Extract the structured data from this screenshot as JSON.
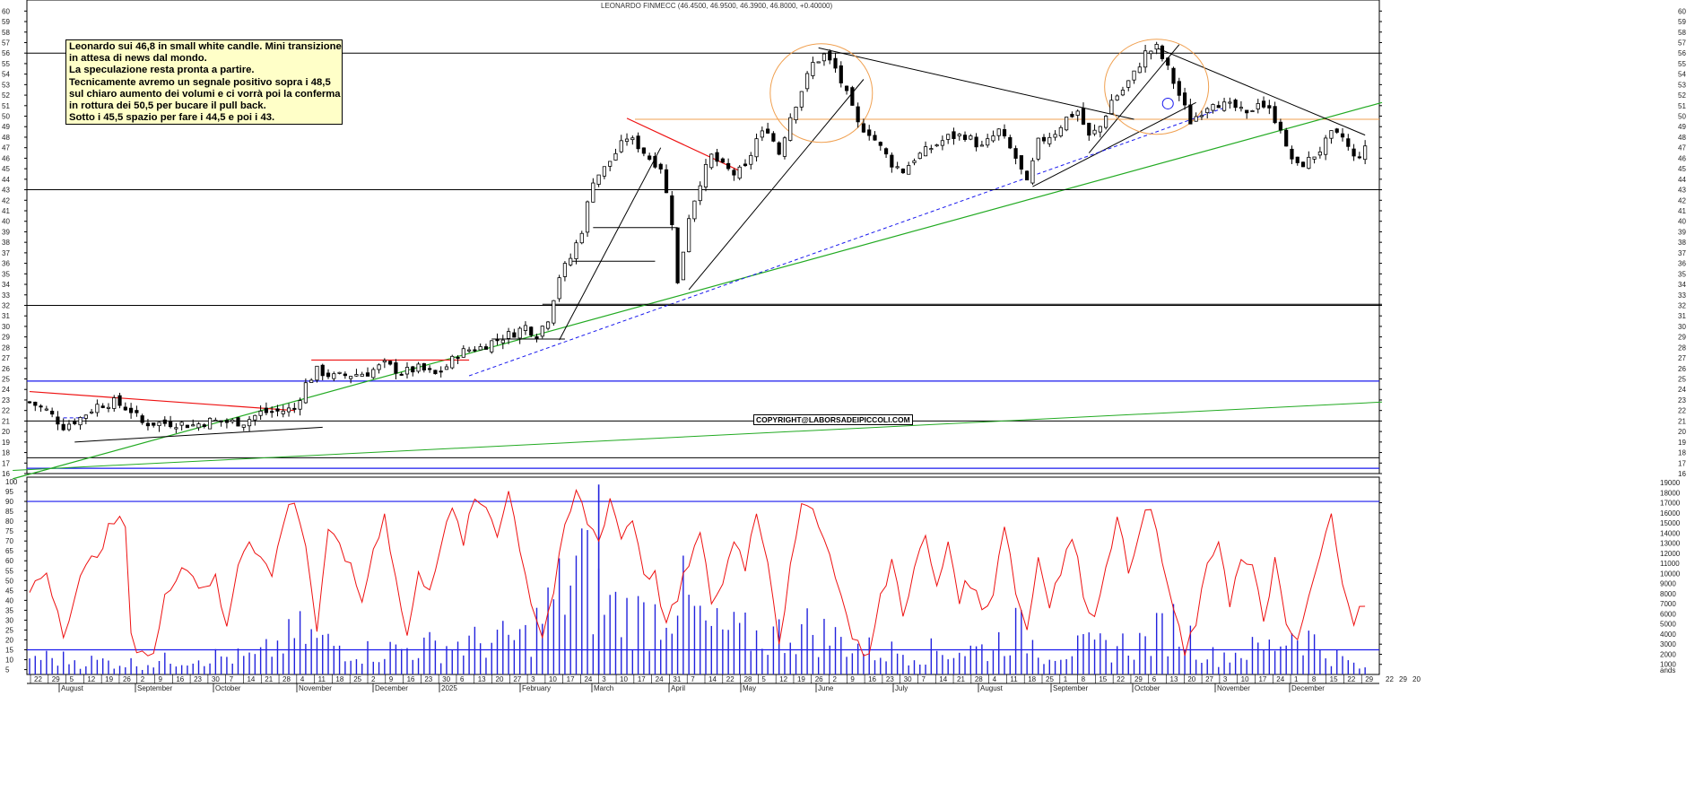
{
  "title": "LEONARDO FINMECC (46.4500, 46.9500, 46.3900, 46.8000, +0.40000)",
  "annotation_lines": [
    "Leonardo sui 46,8 in small white candle. Mini transizione",
    "in attesa di news dal mondo.",
    "La speculazione resta pronta a partire.",
    "Tecnicamente avremo un segnale positivo sopra i 48,5",
    "sul chiaro aumento dei volumi  e ci vorrà poi la conferma",
    "in rottura dei 50,5 per bucare il pull back.",
    "Sotto i 45,5 spazio per fare i 44,5 e poi i 43."
  ],
  "copyright": "COPYRIGHT@LABORSADEIPICCOLI.COM",
  "volume_unit_label": "ands",
  "colors": {
    "price_candles": "#000000",
    "oscillator": "#ee1111",
    "volume": "#2222dd",
    "support_blue": "#1a1aee",
    "trend_green": "#22aa22",
    "trend_red": "#ee1111",
    "circles": "#f0a050",
    "horizontal_orange": "#f0a050"
  },
  "chart_data": {
    "type": "candlestick",
    "price_axis": {
      "min": 16,
      "max": 60,
      "ticks": [
        16,
        17,
        18,
        19,
        20,
        21,
        22,
        23,
        24,
        25,
        26,
        27,
        28,
        29,
        30,
        31,
        32,
        33,
        34,
        35,
        36,
        37,
        38,
        39,
        40,
        41,
        42,
        43,
        44,
        45,
        46,
        47,
        48,
        49,
        50,
        51,
        52,
        53,
        54,
        55,
        56,
        57,
        58,
        59,
        60
      ]
    },
    "oscillator_axis": {
      "min": 5,
      "max": 100,
      "ticks": [
        5,
        10,
        15,
        20,
        25,
        30,
        35,
        40,
        45,
        50,
        55,
        60,
        65,
        70,
        75,
        80,
        85,
        90,
        95,
        100
      ]
    },
    "volume_axis": {
      "min": 0,
      "max": 19000,
      "ticks": [
        1000,
        2000,
        3000,
        4000,
        5000,
        6000,
        7000,
        8000,
        9000,
        10000,
        11000,
        12000,
        13000,
        14000,
        15000,
        16000,
        17000,
        18000,
        19000
      ]
    },
    "day_ticks": [
      "22",
      "29",
      "5",
      "12",
      "19",
      "26",
      "2",
      "9",
      "16",
      "23",
      "30",
      "7",
      "14",
      "21",
      "28",
      "4",
      "11",
      "18",
      "25",
      "2",
      "9",
      "16",
      "23",
      "30",
      "6",
      "13",
      "20",
      "27",
      "3",
      "10",
      "17",
      "24",
      "3",
      "10",
      "17",
      "24",
      "31",
      "7",
      "14",
      "22",
      "28",
      "5",
      "12",
      "19",
      "26",
      "2",
      "9",
      "16",
      "23",
      "30",
      "7",
      "14",
      "21",
      "28",
      "4",
      "11",
      "18",
      "25",
      "1",
      "8",
      "15",
      "22",
      "29",
      "6",
      "13",
      "20",
      "27",
      "3",
      "10",
      "17",
      "24",
      "1",
      "8",
      "15",
      "22",
      "29"
    ],
    "month_labels": [
      "August",
      "September",
      "October",
      "November",
      "December",
      "2025",
      "February",
      "March",
      "April",
      "May",
      "June",
      "July",
      "August",
      "September",
      "October",
      "November",
      "December"
    ],
    "extra_right_ticks": [
      "22",
      "29",
      "20"
    ],
    "horizontal_levels": {
      "black": [
        56,
        43,
        32,
        21,
        17.5
      ],
      "blue": [
        24.8,
        16.5
      ],
      "orange": [
        49.7
      ],
      "oscillator_blue": [
        90,
        15
      ]
    },
    "close_anchors": [
      [
        0,
        22.8
      ],
      [
        3,
        22.0
      ],
      [
        6,
        20.5
      ],
      [
        9,
        21.3
      ],
      [
        12,
        22.5
      ],
      [
        15,
        22.8
      ],
      [
        18,
        22.0
      ],
      [
        20,
        20.8
      ],
      [
        23,
        20.8
      ],
      [
        26,
        20.8
      ],
      [
        29,
        20.6
      ],
      [
        32,
        21.0
      ],
      [
        35,
        20.9
      ],
      [
        38,
        20.9
      ],
      [
        41,
        21.8
      ],
      [
        44,
        21.9
      ],
      [
        47,
        22.2
      ],
      [
        49,
        24.5
      ],
      [
        51,
        25.8
      ],
      [
        54,
        25.2
      ],
      [
        57,
        25.4
      ],
      [
        60,
        25.6
      ],
      [
        63,
        26.4
      ],
      [
        66,
        25.6
      ],
      [
        69,
        26.0
      ],
      [
        72,
        25.4
      ],
      [
        74,
        26.2
      ],
      [
        76,
        27.4
      ],
      [
        78,
        27.8
      ],
      [
        80,
        28.0
      ],
      [
        83,
        28.8
      ],
      [
        86,
        29.4
      ],
      [
        88,
        30.0
      ],
      [
        90,
        29.2
      ],
      [
        92,
        30.8
      ],
      [
        94,
        34.8
      ],
      [
        96,
        36.5
      ],
      [
        98,
        39.2
      ],
      [
        100,
        44.0
      ],
      [
        102,
        45.0
      ],
      [
        104,
        46.5
      ],
      [
        106,
        48.0
      ],
      [
        108,
        47.2
      ],
      [
        110,
        46.0
      ],
      [
        112,
        45.2
      ],
      [
        114,
        40.0
      ],
      [
        115,
        34.0
      ],
      [
        117,
        40.5
      ],
      [
        119,
        43.8
      ],
      [
        121,
        46.2
      ],
      [
        123,
        45.2
      ],
      [
        125,
        44.5
      ],
      [
        127,
        45.0
      ],
      [
        129,
        47.8
      ],
      [
        131,
        48.8
      ],
      [
        133,
        46.5
      ],
      [
        135,
        50.0
      ],
      [
        137,
        52.5
      ],
      [
        139,
        55.0
      ],
      [
        141,
        55.8
      ],
      [
        143,
        54.5
      ],
      [
        145,
        52.0
      ],
      [
        147,
        49.2
      ],
      [
        149,
        48.5
      ],
      [
        151,
        47.0
      ],
      [
        153,
        45.5
      ],
      [
        155,
        44.8
      ],
      [
        157,
        46.0
      ],
      [
        160,
        47.0
      ],
      [
        163,
        48.0
      ],
      [
        166,
        48.2
      ],
      [
        169,
        47.0
      ],
      [
        172,
        48.6
      ],
      [
        175,
        46.0
      ],
      [
        177,
        43.5
      ],
      [
        179,
        47.5
      ],
      [
        182,
        48.5
      ],
      [
        184,
        49.8
      ],
      [
        186,
        50.5
      ],
      [
        188,
        48.0
      ],
      [
        190,
        49.0
      ],
      [
        192,
        51.5
      ],
      [
        194,
        52.5
      ],
      [
        196,
        54.0
      ],
      [
        198,
        56.0
      ],
      [
        200,
        56.5
      ],
      [
        202,
        54.5
      ],
      [
        204,
        52.0
      ],
      [
        206,
        49.5
      ],
      [
        208,
        50.5
      ],
      [
        210,
        51.5
      ],
      [
        212,
        51.0
      ],
      [
        214,
        50.8
      ],
      [
        216,
        50.0
      ],
      [
        218,
        51.5
      ],
      [
        220,
        50.5
      ],
      [
        222,
        49.0
      ],
      [
        223,
        46.8
      ],
      [
        225,
        45.2
      ],
      [
        227,
        45.8
      ],
      [
        229,
        46.8
      ],
      [
        231,
        48.2
      ],
      [
        233,
        48.0
      ],
      [
        235,
        46.0
      ],
      [
        237,
        46.8
      ]
    ],
    "oscillator_anchors": [
      [
        0,
        45
      ],
      [
        3,
        55
      ],
      [
        6,
        25
      ],
      [
        9,
        50
      ],
      [
        12,
        65
      ],
      [
        15,
        80
      ],
      [
        17,
        78
      ],
      [
        18,
        20
      ],
      [
        20,
        15
      ],
      [
        22,
        12
      ],
      [
        24,
        40
      ],
      [
        27,
        60
      ],
      [
        30,
        48
      ],
      [
        33,
        50
      ],
      [
        35,
        25
      ],
      [
        37,
        60
      ],
      [
        39,
        72
      ],
      [
        41,
        62
      ],
      [
        43,
        52
      ],
      [
        45,
        80
      ],
      [
        47,
        92
      ],
      [
        49,
        68
      ],
      [
        51,
        25
      ],
      [
        53,
        72
      ],
      [
        55,
        70
      ],
      [
        57,
        55
      ],
      [
        59,
        40
      ],
      [
        61,
        65
      ],
      [
        63,
        85
      ],
      [
        65,
        50
      ],
      [
        67,
        22
      ],
      [
        69,
        52
      ],
      [
        71,
        48
      ],
      [
        73,
        68
      ],
      [
        75,
        85
      ],
      [
        77,
        70
      ],
      [
        79,
        90
      ],
      [
        81,
        88
      ],
      [
        83,
        75
      ],
      [
        85,
        95
      ],
      [
        87,
        68
      ],
      [
        89,
        40
      ],
      [
        91,
        22
      ],
      [
        93,
        45
      ],
      [
        95,
        75
      ],
      [
        97,
        95
      ],
      [
        99,
        80
      ],
      [
        101,
        70
      ],
      [
        103,
        92
      ],
      [
        105,
        72
      ],
      [
        107,
        82
      ],
      [
        109,
        55
      ],
      [
        111,
        52
      ],
      [
        113,
        28
      ],
      [
        115,
        40
      ],
      [
        117,
        60
      ],
      [
        119,
        72
      ],
      [
        121,
        40
      ],
      [
        123,
        48
      ],
      [
        125,
        72
      ],
      [
        127,
        58
      ],
      [
        129,
        85
      ],
      [
        131,
        62
      ],
      [
        133,
        20
      ],
      [
        135,
        55
      ],
      [
        137,
        85
      ],
      [
        139,
        90
      ],
      [
        141,
        70
      ],
      [
        143,
        55
      ],
      [
        145,
        30
      ],
      [
        147,
        18
      ],
      [
        149,
        12
      ],
      [
        151,
        40
      ],
      [
        153,
        60
      ],
      [
        155,
        35
      ],
      [
        157,
        55
      ],
      [
        159,
        72
      ],
      [
        161,
        45
      ],
      [
        163,
        70
      ],
      [
        165,
        42
      ],
      [
        167,
        50
      ],
      [
        169,
        35
      ],
      [
        171,
        45
      ],
      [
        173,
        80
      ],
      [
        175,
        45
      ],
      [
        177,
        25
      ],
      [
        179,
        62
      ],
      [
        181,
        40
      ],
      [
        183,
        55
      ],
      [
        185,
        72
      ],
      [
        187,
        45
      ],
      [
        189,
        30
      ],
      [
        191,
        60
      ],
      [
        193,
        80
      ],
      [
        195,
        55
      ],
      [
        197,
        78
      ],
      [
        199,
        86
      ],
      [
        201,
        60
      ],
      [
        203,
        35
      ],
      [
        205,
        12
      ],
      [
        207,
        30
      ],
      [
        209,
        55
      ],
      [
        211,
        72
      ],
      [
        213,
        40
      ],
      [
        215,
        60
      ],
      [
        217,
        55
      ],
      [
        219,
        30
      ],
      [
        221,
        60
      ],
      [
        223,
        25
      ],
      [
        225,
        20
      ],
      [
        227,
        40
      ],
      [
        229,
        62
      ],
      [
        231,
        82
      ],
      [
        233,
        52
      ],
      [
        235,
        30
      ],
      [
        237,
        38
      ]
    ],
    "volume_anchors": [
      [
        0,
        2000
      ],
      [
        10,
        1500
      ],
      [
        20,
        1200
      ],
      [
        30,
        2000
      ],
      [
        40,
        1800
      ],
      [
        48,
        4500
      ],
      [
        52,
        3500
      ],
      [
        60,
        2500
      ],
      [
        70,
        3000
      ],
      [
        80,
        3500
      ],
      [
        88,
        4000
      ],
      [
        92,
        7000
      ],
      [
        95,
        9500
      ],
      [
        98,
        12000
      ],
      [
        100,
        9000
      ],
      [
        104,
        7000
      ],
      [
        110,
        6000
      ],
      [
        115,
        9000
      ],
      [
        120,
        5000
      ],
      [
        130,
        4000
      ],
      [
        138,
        5000
      ],
      [
        145,
        3500
      ],
      [
        150,
        2500
      ],
      [
        160,
        2500
      ],
      [
        170,
        2800
      ],
      [
        175,
        5000
      ],
      [
        180,
        2500
      ],
      [
        190,
        3000
      ],
      [
        198,
        3500
      ],
      [
        203,
        5500
      ],
      [
        206,
        4000
      ],
      [
        210,
        2000
      ],
      [
        220,
        3000
      ],
      [
        225,
        5000
      ],
      [
        230,
        2500
      ],
      [
        237,
        500
      ]
    ]
  }
}
